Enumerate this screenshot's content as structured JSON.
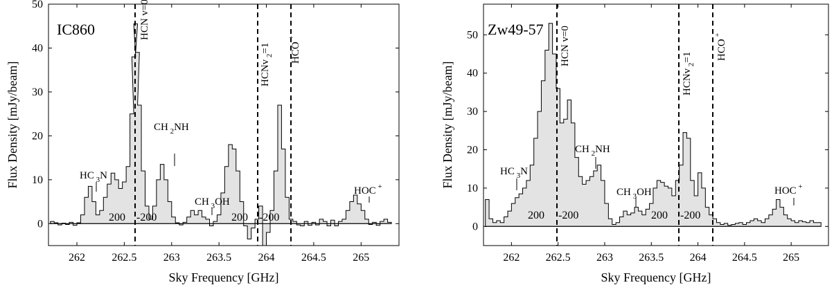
{
  "chart_data": [
    {
      "type": "area",
      "title": "IC860",
      "xlabel": "Sky Frequency [GHz]",
      "ylabel": "Flux Density [mJy/beam]",
      "xlim": [
        261.7,
        265.4
      ],
      "ylim": [
        -5,
        50
      ],
      "xticks": [
        262,
        262.5,
        263,
        263.5,
        264,
        264.5,
        265
      ],
      "xtick_labels": [
        "262",
        "262.5",
        "263",
        "263.5",
        "264",
        "264.5",
        "265"
      ],
      "yticks": [
        0,
        10,
        20,
        30,
        40,
        50
      ],
      "ytick_labels": [
        "0",
        "10",
        "20",
        "30",
        "40",
        "50"
      ],
      "grid": false,
      "series": [
        {
          "x": [
            261.74,
            261.78,
            261.82,
            261.86,
            261.9,
            261.94,
            261.98,
            262.02,
            262.06,
            262.1,
            262.14,
            262.18,
            262.22,
            262.26,
            262.3,
            262.34,
            262.38,
            262.42,
            262.46,
            262.5,
            262.54,
            262.58,
            262.6,
            262.62,
            262.64,
            262.66,
            262.7,
            262.74,
            262.78,
            262.82,
            262.86,
            262.9,
            262.94,
            262.98,
            263.02,
            263.06,
            263.1,
            263.14,
            263.18,
            263.22,
            263.26,
            263.3,
            263.34,
            263.38,
            263.42,
            263.46,
            263.5,
            263.54,
            263.58,
            263.62,
            263.66,
            263.7,
            263.74,
            263.78,
            263.82,
            263.86,
            263.9,
            263.94,
            263.98,
            264.02,
            264.06,
            264.1,
            264.14,
            264.18,
            264.22,
            264.26,
            264.3,
            264.34,
            264.38,
            264.42,
            264.46,
            264.5,
            264.54,
            264.58,
            264.62,
            264.66,
            264.7,
            264.74,
            264.78,
            264.82,
            264.86,
            264.9,
            264.94,
            264.98,
            265.02,
            265.06,
            265.1,
            265.14,
            265.18,
            265.22,
            265.26,
            265.3
          ],
          "values": [
            0.5,
            0.2,
            -0.3,
            0.1,
            -0.2,
            0.3,
            -0.4,
            0.2,
            2.0,
            6.0,
            8.5,
            5.0,
            2.0,
            3.0,
            6.0,
            9.0,
            11.5,
            10.0,
            8.0,
            9.5,
            13.0,
            25.0,
            38.0,
            45.5,
            39.0,
            27.0,
            12.0,
            4.0,
            1.0,
            4.0,
            10.0,
            13.5,
            10.0,
            5.0,
            1.5,
            0.2,
            -0.3,
            0.3,
            1.5,
            3.0,
            2.0,
            3.0,
            1.5,
            1.0,
            -0.5,
            0.5,
            2.0,
            7.0,
            13.0,
            18.0,
            17.0,
            12.0,
            5.0,
            -0.5,
            -3.5,
            -1.0,
            1.0,
            4.0,
            -5.0,
            -2.0,
            3.0,
            12.0,
            27.0,
            17.0,
            6.0,
            1.0,
            0.5,
            -0.3,
            -0.5,
            0.5,
            -0.4,
            0.3,
            -0.3,
            1.0,
            0.5,
            -0.5,
            0.8,
            -0.5,
            0.5,
            1.0,
            3.0,
            5.0,
            6.5,
            4.5,
            3.0,
            1.0,
            -0.2,
            0.3,
            -0.4,
            0.5,
            1.0,
            0.3
          ]
        }
      ],
      "vlines": [
        262.55,
        263.87,
        264.22
      ],
      "annotations": {
        "hcn_v0": {
          "main": "HCN v=0"
        },
        "hcn_v2": {
          "pre": "HCNv",
          "sub": "2",
          "post": "=1"
        },
        "hco": {
          "main": "HCO",
          "sup": "+"
        },
        "hc3n": {
          "pre": "HC",
          "sub": "3",
          "post": "N"
        },
        "ch2nh": {
          "pre": "CH",
          "sub": "2",
          "post": "NH"
        },
        "ch3oh": {
          "pre": "CH",
          "sub": "3",
          "post": "OH"
        },
        "hoc": {
          "main": "HOC",
          "sup": "+"
        },
        "vel_200_a": "200",
        "vel_m200_a": "-200",
        "vel_200_b": "200",
        "vel_m200_b": "-200"
      }
    },
    {
      "type": "area",
      "title": "Zw49-57",
      "xlabel": "Sky Frequency [GHz]",
      "ylabel": "Flux Density [mJy/beam]",
      "xlim": [
        261.7,
        265.4
      ],
      "ylim": [
        -5,
        58
      ],
      "xticks": [
        262,
        262.5,
        263,
        263.5,
        264,
        264.5,
        265
      ],
      "xtick_labels": [
        "262",
        "262.5",
        "263",
        "263.5",
        "264",
        "264.5",
        "265"
      ],
      "yticks": [
        0,
        10,
        20,
        30,
        40,
        50
      ],
      "ytick_labels": [
        "0",
        "10",
        "20",
        "30",
        "40",
        "50"
      ],
      "grid": false,
      "series": [
        {
          "x": [
            261.74,
            261.78,
            261.82,
            261.86,
            261.9,
            261.94,
            261.98,
            262.02,
            262.06,
            262.1,
            262.14,
            262.18,
            262.22,
            262.26,
            262.3,
            262.34,
            262.38,
            262.42,
            262.46,
            262.5,
            262.54,
            262.58,
            262.62,
            262.66,
            262.7,
            262.74,
            262.78,
            262.82,
            262.86,
            262.9,
            262.94,
            262.98,
            263.02,
            263.06,
            263.1,
            263.14,
            263.18,
            263.22,
            263.26,
            263.3,
            263.34,
            263.38,
            263.42,
            263.46,
            263.5,
            263.54,
            263.58,
            263.62,
            263.66,
            263.7,
            263.74,
            263.78,
            263.82,
            263.86,
            263.9,
            263.94,
            263.98,
            264.02,
            264.06,
            264.1,
            264.14,
            264.18,
            264.22,
            264.26,
            264.3,
            264.34,
            264.38,
            264.42,
            264.46,
            264.5,
            264.54,
            264.58,
            264.62,
            264.66,
            264.7,
            264.74,
            264.78,
            264.82,
            264.86,
            264.9,
            264.94,
            264.98,
            265.02,
            265.06,
            265.1,
            265.14,
            265.18,
            265.22,
            265.26,
            265.3
          ],
          "values": [
            7.0,
            2.0,
            1.0,
            1.5,
            1.0,
            2.5,
            4.0,
            6.0,
            7.5,
            8.5,
            10.0,
            12.0,
            16.0,
            23.0,
            30.0,
            38.0,
            46.0,
            53.0,
            45.0,
            36.0,
            27.0,
            28.0,
            33.0,
            27.0,
            18.0,
            13.0,
            11.0,
            12.0,
            13.0,
            14.5,
            16.0,
            12.0,
            6.0,
            2.0,
            0.5,
            1.0,
            2.5,
            4.0,
            3.0,
            3.5,
            5.0,
            4.0,
            3.0,
            4.5,
            6.0,
            10.0,
            12.0,
            11.5,
            10.5,
            10.0,
            8.0,
            12.0,
            16.0,
            24.5,
            23.0,
            12.0,
            8.0,
            14.0,
            10.0,
            5.0,
            3.0,
            2.0,
            1.0,
            0.5,
            0.8,
            0.3,
            0.5,
            0.8,
            1.0,
            0.5,
            1.0,
            1.5,
            2.0,
            1.5,
            1.0,
            2.0,
            3.0,
            4.5,
            7.0,
            5.0,
            3.0,
            2.0,
            1.5,
            1.0,
            1.5,
            1.2,
            1.0,
            1.5,
            1.0,
            1.0
          ],
          "note_values_for_x_axis_are_sky_frequency": true
        }
      ],
      "vlines": [
        262.55,
        263.82,
        264.18
      ],
      "annotations": {
        "hcn_v0": {
          "main": "HCN v=0"
        },
        "hcn_v2": {
          "pre": "HCNv",
          "sub": "2",
          "post": "=1"
        },
        "hco": {
          "main": "HCO",
          "sup": "+"
        },
        "hc3n": {
          "pre": "HC",
          "sub": "3",
          "post": "N"
        },
        "ch2nh": {
          "pre": "CH",
          "sub": "2",
          "post": "NH"
        },
        "ch3oh": {
          "pre": "CH",
          "sub": "3",
          "post": "OH"
        },
        "hoc": {
          "main": "HOC",
          "sup": "+"
        },
        "vel_200_a": "200",
        "vel_m200_a": "-200",
        "vel_200_b": "200",
        "vel_m200_b": "-200"
      }
    }
  ]
}
